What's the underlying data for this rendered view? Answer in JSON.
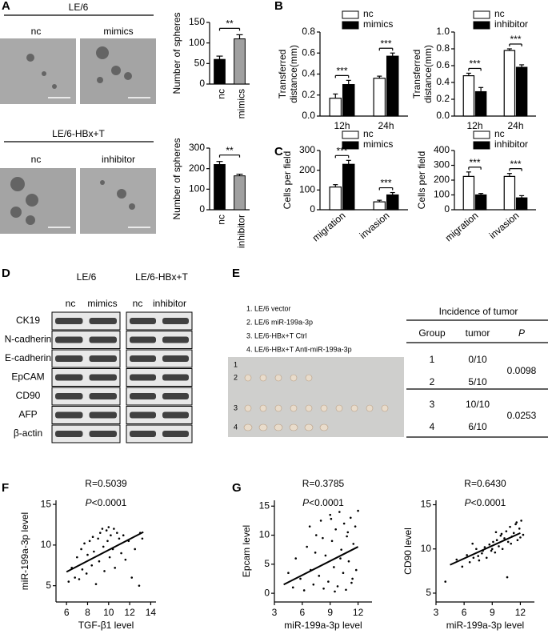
{
  "panel_labels": [
    "A",
    "B",
    "C",
    "D",
    "E",
    "F",
    "G"
  ],
  "panel_a_images": {
    "top": {
      "title": "LE/6",
      "labels": [
        "nc",
        "mimics"
      ]
    },
    "bottom": {
      "title": "LE/6-HBx+T",
      "labels": [
        "nc",
        "inhibitor"
      ]
    }
  },
  "western_blot": {
    "groups": [
      "LE/6",
      "LE/6-HBx+T"
    ],
    "lanes": [
      "nc",
      "mimics",
      "nc",
      "inhibitor"
    ],
    "proteins": [
      "CK19",
      "N-cadherin",
      "E-cadherin",
      "EpCAM",
      "CD90",
      "AFP",
      "β-actin"
    ]
  },
  "tumor_experiment": {
    "legend": [
      "1. LE/6 vector",
      "2. LE/6 miR-199a-3p",
      "3. LE/6-HBx+T Ctrl",
      "4. LE/6-HBx+T Anti-miR-199a-3p"
    ],
    "photo_rows": [
      "1",
      "2",
      "3",
      "4"
    ],
    "table": {
      "title": "Incidence of tumor",
      "headers": [
        "Group",
        "tumor",
        "P"
      ],
      "rows": [
        [
          "1",
          "0/10"
        ],
        [
          "2",
          "5/10"
        ],
        [
          "3",
          "10/10"
        ],
        [
          "4",
          "6/10"
        ]
      ],
      "p_values": [
        "0.0098",
        "0.0253"
      ]
    }
  },
  "chart_data": [
    {
      "type": "bar",
      "y_label": "Number of spheres",
      "categories": [
        "nc",
        "mimics"
      ],
      "values": [
        60,
        110
      ],
      "errors": [
        8,
        10
      ],
      "colors": [
        "#000000",
        "#a0a0a0"
      ],
      "significance": "**",
      "ylim": [
        0,
        150
      ],
      "yticks": [
        0,
        50,
        100,
        150
      ]
    },
    {
      "type": "bar",
      "y_label": "Number of spheres",
      "categories": [
        "nc",
        "inhibitor"
      ],
      "values": [
        220,
        165
      ],
      "errors": [
        15,
        8
      ],
      "colors": [
        "#000000",
        "#a0a0a0"
      ],
      "significance": "**",
      "ylim": [
        0,
        300
      ],
      "yticks": [
        0,
        100,
        200,
        300
      ]
    },
    {
      "type": "grouped_bar",
      "y_label_lines": [
        "Transferred",
        "distance(mm)"
      ],
      "categories": [
        "12h",
        "24h"
      ],
      "series": [
        {
          "name": "nc",
          "color": "#ffffff",
          "values": [
            0.17,
            0.36
          ],
          "errors": [
            0.04,
            0.02
          ]
        },
        {
          "name": "mimics",
          "color": "#000000",
          "values": [
            0.3,
            0.57
          ],
          "errors": [
            0.04,
            0.03
          ]
        }
      ],
      "significance": [
        "***",
        "***"
      ],
      "ylim": [
        0,
        0.8
      ],
      "yticks": [
        {
          "value": 0,
          "label": "0.0"
        },
        0.2,
        0.4,
        0.6,
        0.8
      ]
    },
    {
      "type": "grouped_bar",
      "y_label_lines": [
        "Transferred",
        "distance(mm)"
      ],
      "categories": [
        "12h",
        "24h"
      ],
      "series": [
        {
          "name": "nc",
          "color": "#ffffff",
          "values": [
            0.48,
            0.78
          ],
          "errors": [
            0.03,
            0.02
          ]
        },
        {
          "name": "inhibitor",
          "color": "#000000",
          "values": [
            0.29,
            0.58
          ],
          "errors": [
            0.05,
            0.03
          ]
        }
      ],
      "significance": [
        "***",
        "***"
      ],
      "ylim": [
        0,
        1.0
      ],
      "yticks": [
        {
          "value": 0,
          "label": "0.0"
        },
        0.2,
        0.4,
        0.6,
        0.8,
        {
          "value": 1,
          "label": "1.0"
        }
      ]
    },
    {
      "type": "grouped_bar",
      "y_label": "Cells per field",
      "categories": [
        "migration",
        "invasion"
      ],
      "series": [
        {
          "name": "nc",
          "color": "#ffffff",
          "values": [
            115,
            40
          ],
          "errors": [
            12,
            8
          ]
        },
        {
          "name": "mimics",
          "color": "#000000",
          "values": [
            230,
            75
          ],
          "errors": [
            20,
            12
          ]
        }
      ],
      "significance": [
        "***",
        "***"
      ],
      "ylim": [
        0,
        300
      ],
      "yticks": [
        0,
        100,
        200,
        300
      ]
    },
    {
      "type": "grouped_bar",
      "y_label": "Cells per field",
      "categories": [
        "migration",
        "invasion"
      ],
      "series": [
        {
          "name": "nc",
          "color": "#ffffff",
          "values": [
            225,
            225
          ],
          "errors": [
            30,
            20
          ]
        },
        {
          "name": "inhibitor",
          "color": "#000000",
          "values": [
            100,
            80
          ],
          "errors": [
            10,
            15
          ]
        }
      ],
      "significance": [
        "***",
        "***"
      ],
      "ylim": [
        0,
        400
      ],
      "yticks": [
        0,
        100,
        200,
        300,
        400
      ]
    },
    {
      "type": "scatter",
      "x_label": "TGF-β1 level",
      "y_label": "miR-199a-3p level",
      "annotation": "R=0.5039",
      "p_label": "P",
      "p_value": "<0.0001",
      "color": "#000000",
      "x": [
        6.2,
        6.5,
        6.8,
        7.0,
        7.2,
        7.4,
        7.5,
        7.7,
        7.9,
        8.0,
        8.2,
        8.4,
        8.5,
        8.6,
        8.8,
        9.0,
        9.1,
        9.2,
        9.4,
        9.5,
        9.6,
        9.8,
        9.9,
        10.0,
        10.1,
        10.2,
        10.4,
        10.5,
        10.6,
        10.8,
        11.0,
        11.2,
        11.4,
        11.6,
        11.9,
        12.2,
        12.5,
        12.9,
        13.2,
        13.0
      ],
      "y": [
        5.5,
        7.2,
        6.0,
        8.5,
        5.8,
        9.5,
        7.0,
        10.2,
        6.5,
        8.8,
        10.5,
        7.5,
        11.0,
        9.2,
        5.2,
        10.8,
        8.0,
        11.5,
        12.0,
        9.8,
        6.8,
        11.8,
        10.5,
        12.2,
        8.5,
        11.2,
        9.5,
        12.0,
        7.2,
        11.5,
        10.8,
        9.0,
        11.2,
        8.2,
        10.5,
        6.0,
        9.5,
        5.0,
        10.8,
        11.5
      ],
      "fit": {
        "x": [
          6.0,
          13.3
        ],
        "y": [
          6.7,
          11.6
        ]
      },
      "xlim": [
        5,
        14.5
      ],
      "ylim": [
        3,
        15.5
      ],
      "xticks": [
        6,
        8,
        10,
        12,
        14
      ],
      "yticks": [
        5,
        10,
        15
      ]
    },
    {
      "type": "scatter",
      "x_label": "miR-199a-3p level",
      "y_label": "Epcam level",
      "annotation": "R=0.3785",
      "p_label": "P",
      "p_value": "<0.0001",
      "color": "#000000",
      "x": [
        4.5,
        5.0,
        5.3,
        5.8,
        6.2,
        6.5,
        6.9,
        7.2,
        7.5,
        7.8,
        8.0,
        8.3,
        8.5,
        8.8,
        9.0,
        9.2,
        9.4,
        9.6,
        9.8,
        10.0,
        10.2,
        10.4,
        10.5,
        10.7,
        10.9,
        11.0,
        11.2,
        11.4,
        11.5,
        11.7,
        11.8,
        12.0,
        8.2,
        9.5,
        10.1,
        6.8,
        7.4,
        11.3,
        10.8,
        9.1
      ],
      "y": [
        3.5,
        1.0,
        6.0,
        2.5,
        0.5,
        8.0,
        4.0,
        1.5,
        10.0,
        3.0,
        12.5,
        0.8,
        6.5,
        2.0,
        13.5,
        9.0,
        4.5,
        11.0,
        1.2,
        14.0,
        7.5,
        3.5,
        12.0,
        0.6,
        10.5,
        5.5,
        13.0,
        2.5,
        8.5,
        11.5,
        4.0,
        14.2,
        9.5,
        0.3,
        6.0,
        11.5,
        7.0,
        1.8,
        9.8,
        12.8
      ],
      "fit": {
        "x": [
          4.0,
          12.0
        ],
        "y": [
          1.5,
          8.0
        ]
      },
      "xlim": [
        3,
        13.5
      ],
      "ylim": [
        -1.5,
        16
      ],
      "xticks": [
        3,
        6,
        9,
        12
      ],
      "yticks": [
        0,
        5,
        10,
        15
      ]
    },
    {
      "type": "scatter",
      "x_label": "miR-199a-3p level",
      "y_label": "CD90 level",
      "annotation": "R=0.6430",
      "p_label": "P",
      "p_value": "<0.0001",
      "color": "#000000",
      "x": [
        4.0,
        5.2,
        5.8,
        6.3,
        6.6,
        7.0,
        7.3,
        7.6,
        7.9,
        8.2,
        8.4,
        8.7,
        8.9,
        9.1,
        9.3,
        9.5,
        9.7,
        9.9,
        10.1,
        10.3,
        10.5,
        10.7,
        10.9,
        11.1,
        11.3,
        11.5,
        11.7,
        11.9,
        12.1,
        12.3,
        8.0,
        9.0,
        10.0,
        11.0,
        7.5,
        10.6,
        9.4,
        11.6,
        6.9,
        12.0
      ],
      "y": [
        6.3,
        8.8,
        8.0,
        9.3,
        8.5,
        9.0,
        10.0,
        8.7,
        9.5,
        10.2,
        9.0,
        10.5,
        9.8,
        10.8,
        9.6,
        11.0,
        10.3,
        11.5,
        10.0,
        11.2,
        12.0,
        10.8,
        12.5,
        11.4,
        11.8,
        12.8,
        11.0,
        12.3,
        13.2,
        11.6,
        9.8,
        10.0,
        11.7,
        10.6,
        9.2,
        6.8,
        11.9,
        13.0,
        10.6,
        11.3
      ],
      "fit": {
        "x": [
          4.5,
          12.0
        ],
        "y": [
          8.2,
          11.8
        ]
      },
      "xlim": [
        3,
        13.5
      ],
      "ylim": [
        4,
        15.5
      ],
      "xticks": [
        3,
        6,
        9,
        12
      ],
      "yticks": [
        5,
        10,
        15
      ]
    }
  ]
}
